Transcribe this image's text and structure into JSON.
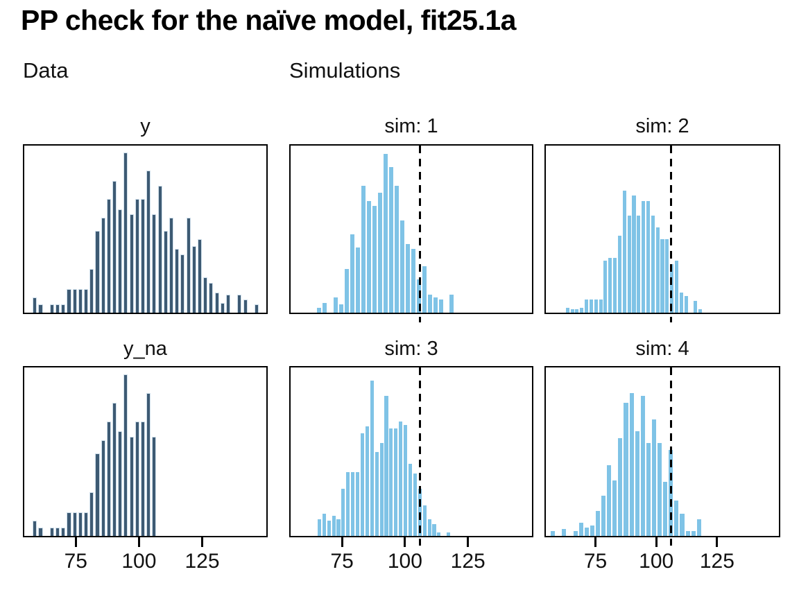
{
  "page": {
    "title": "PP check for the naïve model, fit25.1a",
    "column_headers": {
      "data": "Data",
      "simulations": "Simulations"
    }
  },
  "colors": {
    "background": "#ffffff",
    "text": "#111111",
    "panel_border": "#000000",
    "data_bar_fill": "#3d5a73",
    "data_bar_outline": "#cfdfeb",
    "sim_bar_fill": "#7fc3e6",
    "reference_line": "#000000"
  },
  "chart_data": {
    "type": "bar",
    "subtype": "histogram-grid",
    "title": "PP check for the naïve model, fit25.1a",
    "group_labels": [
      "Data",
      "Simulations"
    ],
    "x_axis": {
      "xlim": [
        54.6,
        150.4
      ],
      "ticks": [
        75,
        100,
        125
      ],
      "ticks_shown": "bottom row only"
    },
    "reference_line": {
      "x": 106,
      "style": "dashed",
      "color": "#000000",
      "shown_in": "simulation panels"
    },
    "heights_note": "bar heights are relative to panel inner height (0-1); no y axis is drawn",
    "panels": [
      {
        "id": "y",
        "title": "y",
        "group": "data",
        "row": 0,
        "col": 0,
        "x0": 58.8,
        "binwidth": 2.25,
        "ref_line": null,
        "heights": [
          0.09,
          0.05,
          0,
          0.05,
          0.05,
          0.05,
          0.14,
          0.14,
          0.14,
          0.14,
          0.26,
          0.49,
          0.57,
          0.68,
          0.79,
          0.62,
          0.96,
          0.59,
          0.68,
          0.68,
          0.85,
          0.59,
          0.76,
          0.49,
          0.57,
          0.38,
          0.35,
          0.57,
          0.4,
          0.44,
          0.21,
          0.18,
          0.12,
          0.06,
          0.11,
          0,
          0.11,
          0.08,
          0,
          0.05
        ]
      },
      {
        "id": "sim1",
        "title": "sim: 1",
        "group": "sim",
        "row": 0,
        "col": 1,
        "x0": 65.8,
        "binwidth": 2.2,
        "ref_line": 106,
        "heights": [
          0.03,
          0.06,
          0,
          0.09,
          0.05,
          0.26,
          0.47,
          0.39,
          0.76,
          0.67,
          0.64,
          0.72,
          0.95,
          0.87,
          0.76,
          0.55,
          0.41,
          0.38,
          0.2,
          0.28,
          0.11,
          0.09,
          0.08,
          0,
          0.11
        ]
      },
      {
        "id": "sim2",
        "title": "sim: 2",
        "group": "sim",
        "row": 0,
        "col": 2,
        "x0": 63.5,
        "binwidth": 1.95,
        "ref_line": 106,
        "heights": [
          0.03,
          0.02,
          0.02,
          0.03,
          0.08,
          0.08,
          0.08,
          0.08,
          0.31,
          0.33,
          0.33,
          0.46,
          0.73,
          0.58,
          0.7,
          0.58,
          0.67,
          0.67,
          0.58,
          0.51,
          0.44,
          0.44,
          0.29,
          0.31,
          0.12,
          0.1,
          0,
          0.07,
          0.02
        ]
      },
      {
        "id": "y_na",
        "title": "y_na",
        "group": "data",
        "row": 1,
        "col": 0,
        "x0": 58.8,
        "binwidth": 2.25,
        "ref_line": null,
        "heights": [
          0.09,
          0.05,
          0,
          0.05,
          0.05,
          0.05,
          0.14,
          0.14,
          0.14,
          0.14,
          0.26,
          0.49,
          0.57,
          0.68,
          0.79,
          0.62,
          0.96,
          0.59,
          0.68,
          0.68,
          0.85,
          0.59
        ]
      },
      {
        "id": "sim3",
        "title": "sim: 3",
        "group": "sim",
        "row": 1,
        "col": 1,
        "x0": 66.0,
        "binwidth": 1.9,
        "ref_line": 106,
        "heights": [
          0.1,
          0.13,
          0.09,
          0.12,
          0.1,
          0.28,
          0.38,
          0.38,
          0.38,
          0.61,
          0.65,
          0.92,
          0.5,
          0.55,
          0.83,
          0.64,
          0.64,
          0.68,
          0.66,
          0.43,
          0.37,
          0.28,
          0.18,
          0.1,
          0.07,
          0.02,
          0,
          0.02
        ]
      },
      {
        "id": "sim4",
        "title": "sim: 4",
        "group": "sim",
        "row": 1,
        "col": 2,
        "x0": 57.5,
        "binwidth": 2.31,
        "ref_line": 106,
        "heights": [
          0.03,
          0,
          0.04,
          0,
          0.03,
          0.08,
          0.05,
          0.06,
          0.15,
          0.24,
          0.42,
          0.33,
          0.58,
          0.79,
          0.85,
          0.62,
          0.83,
          0.55,
          0.69,
          0.55,
          0.32,
          0.51,
          0.21,
          0.13,
          0.03,
          0.03,
          0.1
        ]
      }
    ]
  }
}
